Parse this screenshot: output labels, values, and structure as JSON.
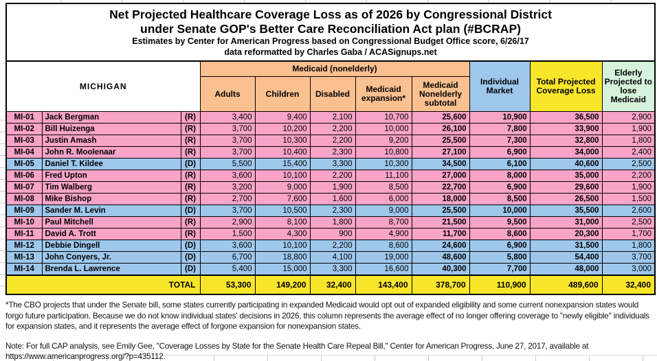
{
  "title": {
    "line1": "Net Projected Healthcare Coverage Loss as of 2026 by Congressional District",
    "line2": "under Senate GOP's Better Care Reconciliation Act plan (#BCRAP)",
    "line3": "Estimates by Center for American Progress based on Congressional Budget Office score, 6/26/17",
    "line4": "data reformatted by Charles Gaba / ACASignups.net"
  },
  "table": {
    "headers": {
      "state": "MICHIGAN",
      "medicaid_group": "Medicaid (nonelderly)",
      "adults": "Adults",
      "children": "Children",
      "disabled": "Disabled",
      "expansion": "Medicaid expansion*",
      "subtotal": "Medicaid Nonelderly subtotal",
      "individual_market": "Individual Market",
      "total": "Total Projected Coverage Loss",
      "elderly": "Elderly Projected to lose Medicaid"
    },
    "rows": [
      {
        "district": "MI-01",
        "name": "Jack Bergman",
        "party": "(R)",
        "values": [
          "3,400",
          "9,400",
          "2,100",
          "10,700",
          "25,600",
          "10,900",
          "36,500",
          "2,900"
        ]
      },
      {
        "district": "MI-02",
        "name": "Bill Huizenga",
        "party": "(R)",
        "values": [
          "3,700",
          "10,200",
          "2,200",
          "10,000",
          "26,100",
          "7,800",
          "33,900",
          "1,900"
        ]
      },
      {
        "district": "MI-03",
        "name": "Justin Amash",
        "party": "(R)",
        "values": [
          "3,700",
          "10,300",
          "2,200",
          "9,200",
          "25,500",
          "7,300",
          "32,800",
          "1,800"
        ]
      },
      {
        "district": "MI-04",
        "name": "John R. Moolenaar",
        "party": "(R)",
        "values": [
          "3,700",
          "10,400",
          "2,300",
          "10,800",
          "27,100",
          "6,900",
          "34,000",
          "2,400"
        ]
      },
      {
        "district": "MI-05",
        "name": "Daniel T. Kildee",
        "party": "(D)",
        "values": [
          "5,500",
          "15,400",
          "3,300",
          "10,300",
          "34,500",
          "6,100",
          "40,600",
          "2,500"
        ]
      },
      {
        "district": "MI-06",
        "name": "Fred Upton",
        "party": "(R)",
        "values": [
          "3,600",
          "10,100",
          "2,200",
          "11,100",
          "27,000",
          "8,000",
          "35,000",
          "2,200"
        ]
      },
      {
        "district": "MI-07",
        "name": "Tim Walberg",
        "party": "(R)",
        "values": [
          "3,200",
          "9,000",
          "1,900",
          "8,500",
          "22,700",
          "6,900",
          "29,600",
          "1,900"
        ]
      },
      {
        "district": "MI-08",
        "name": "Mike Bishop",
        "party": "(R)",
        "values": [
          "2,700",
          "7,600",
          "1,600",
          "6,000",
          "18,000",
          "8,500",
          "26,500",
          "1,500"
        ]
      },
      {
        "district": "MI-09",
        "name": "Sander M. Levin",
        "party": "(D)",
        "values": [
          "3,700",
          "10,500",
          "2,300",
          "9,000",
          "25,500",
          "10,000",
          "35,500",
          "2,600"
        ]
      },
      {
        "district": "MI-10",
        "name": "Paul Mitchell",
        "party": "(R)",
        "values": [
          "2,900",
          "8,100",
          "1,800",
          "8,700",
          "21,500",
          "9,500",
          "31,000",
          "2,500"
        ]
      },
      {
        "district": "MI-11",
        "name": "David A. Trott",
        "party": "(R)",
        "values": [
          "1,500",
          "4,300",
          "900",
          "4,900",
          "11,700",
          "8,600",
          "20,300",
          "1,700"
        ]
      },
      {
        "district": "MI-12",
        "name": "Debbie Dingell",
        "party": "(D)",
        "values": [
          "3,600",
          "10,100",
          "2,200",
          "8,600",
          "24,600",
          "6,900",
          "31,500",
          "1,800"
        ]
      },
      {
        "district": "MI-13",
        "name": "John Conyers, Jr.",
        "party": "(D)",
        "values": [
          "6,700",
          "18,800",
          "4,100",
          "19,000",
          "48,600",
          "5,800",
          "54,400",
          "3,700"
        ]
      },
      {
        "district": "MI-14",
        "name": "Brenda L. Lawrence",
        "party": "(D)",
        "values": [
          "5,400",
          "15,000",
          "3,300",
          "16,600",
          "40,300",
          "7,700",
          "48,000",
          "3,000"
        ]
      }
    ],
    "total_row": {
      "label": "TOTAL",
      "values": [
        "53,300",
        "149,200",
        "32,400",
        "143,400",
        "378,700",
        "110,900",
        "489,600",
        "32,400"
      ]
    }
  },
  "footnotes": {
    "asterisk": "*The CBO projects that under the Senate bill, some states currently participating in expanded Medicaid would opt out of expanded eligibility and some current nonexpansion states would forgo future participation. Because we do not know individual states' decisions in 2026, this column represents the average effect of no longer offering coverage to \"newly eligible\" individuals for expansion states, and it represents the average effect of forgone expansion for nonexpansion states.",
    "note": "Note: For full CAP analysis, see Emily Gee, \"Coverage Losses by State for the Senate Health Care Repeal Bill,\" Center for American Progress, June 27, 2017, available at https://www.americanprogress.org/?p=435112."
  },
  "colors": {
    "republican_row": "#F8A3C8",
    "democrat_row": "#9EC7EC",
    "medicaid_header": "#FAC090",
    "individual_market_header": "#9EC7EC",
    "total_column": "#F8E62B",
    "elderly_header": "#D6F2DA"
  }
}
